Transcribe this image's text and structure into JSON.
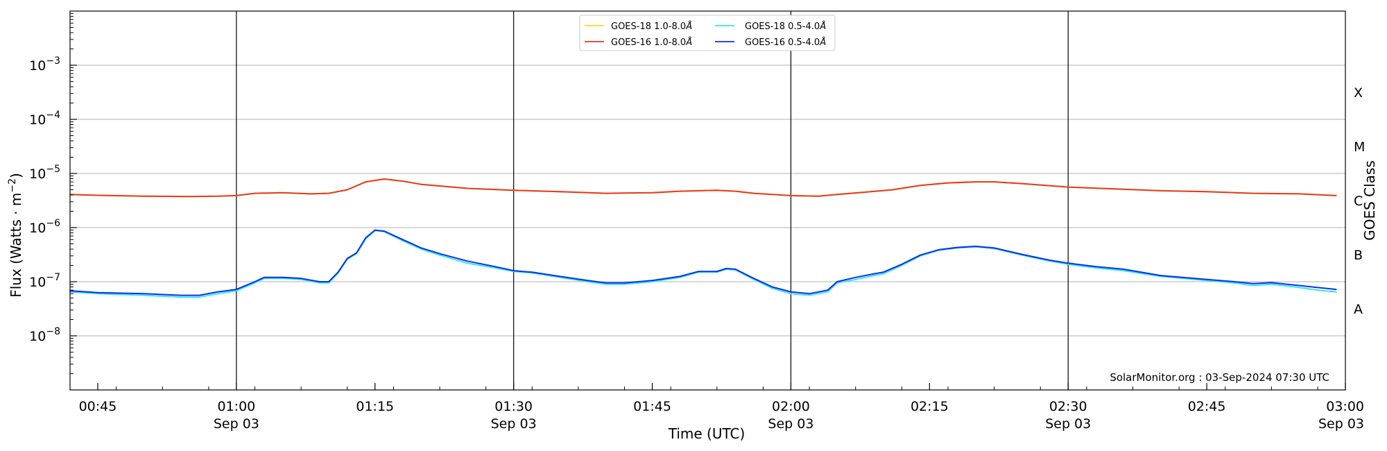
{
  "chart_data": {
    "type": "line",
    "xlabel": "Time (UTC)",
    "ylabel": "Flux (Watts · m",
    "ylabel_sup": "−2",
    "ylabel_close": ")",
    "right_label": "GOES Class",
    "credit": "SolarMonitor.org : 03-Sep-2024 07:30 UTC",
    "x_range": [
      "00:42",
      "03:00"
    ],
    "y_scale": "log",
    "ylim": [
      1e-09,
      0.01
    ],
    "y_ticks": [
      {
        "value": 1e-08,
        "base": "10",
        "exp": "−8"
      },
      {
        "value": 1e-07,
        "base": "10",
        "exp": "−7"
      },
      {
        "value": 1e-06,
        "base": "10",
        "exp": "−6"
      },
      {
        "value": 1e-05,
        "base": "10",
        "exp": "−5"
      },
      {
        "value": 0.0001,
        "base": "10",
        "exp": "−4"
      },
      {
        "value": 0.001,
        "base": "10",
        "exp": "−3"
      }
    ],
    "x_ticks": [
      {
        "time": "00:45",
        "label": "00:45",
        "sub": ""
      },
      {
        "time": "01:00",
        "label": "01:00",
        "sub": "Sep 03"
      },
      {
        "time": "01:15",
        "label": "01:15",
        "sub": ""
      },
      {
        "time": "01:30",
        "label": "01:30",
        "sub": "Sep 03"
      },
      {
        "time": "01:45",
        "label": "01:45",
        "sub": ""
      },
      {
        "time": "02:00",
        "label": "02:00",
        "sub": "Sep 03"
      },
      {
        "time": "02:15",
        "label": "02:15",
        "sub": ""
      },
      {
        "time": "02:30",
        "label": "02:30",
        "sub": "Sep 03"
      },
      {
        "time": "02:45",
        "label": "02:45",
        "sub": ""
      },
      {
        "time": "03:00",
        "label": "03:00",
        "sub": "Sep 03"
      }
    ],
    "vertical_lines": [
      "01:00",
      "01:30",
      "02:00",
      "02:30"
    ],
    "grid_y": true,
    "goes_classes": [
      {
        "label": "A",
        "value": 3.16e-08
      },
      {
        "label": "B",
        "value": 3.16e-07
      },
      {
        "label": "C",
        "value": 3.16e-06
      },
      {
        "label": "M",
        "value": 3.16e-05
      },
      {
        "label": "X",
        "value": 0.000316
      }
    ],
    "legend_position": "top-center",
    "legend": [
      {
        "name": "GOES-18 1.0-8.0",
        "unit": "Å",
        "color": "#ffd21f"
      },
      {
        "name": "GOES-18 0.5-4.0",
        "unit": "Å",
        "color": "#2ee6f0"
      },
      {
        "name": "GOES-16 1.0-8.0",
        "unit": "Å",
        "color": "#e8381c"
      },
      {
        "name": "GOES-16 0.5-4.0",
        "unit": "Å",
        "color": "#0a30e8"
      }
    ],
    "series": [
      {
        "name": "GOES-18 1.0-8.0Å",
        "color": "#ffd21f",
        "points": [
          [
            "00:42",
            4.1e-06
          ],
          [
            "00:45",
            3.95e-06
          ],
          [
            "00:50",
            3.8e-06
          ],
          [
            "00:55",
            3.75e-06
          ],
          [
            "00:58",
            3.8e-06
          ],
          [
            "01:00",
            3.9e-06
          ],
          [
            "01:02",
            4.3e-06
          ],
          [
            "01:05",
            4.4e-06
          ],
          [
            "01:08",
            4.2e-06
          ],
          [
            "01:10",
            4.3e-06
          ],
          [
            "01:12",
            5e-06
          ],
          [
            "01:14",
            7e-06
          ],
          [
            "01:16",
            7.9e-06
          ],
          [
            "01:18",
            7.2e-06
          ],
          [
            "01:20",
            6.3e-06
          ],
          [
            "01:25",
            5.3e-06
          ],
          [
            "01:30",
            4.9e-06
          ],
          [
            "01:35",
            4.6e-06
          ],
          [
            "01:40",
            4.3e-06
          ],
          [
            "01:45",
            4.4e-06
          ],
          [
            "01:48",
            4.7e-06
          ],
          [
            "01:50",
            4.8e-06
          ],
          [
            "01:52",
            4.9e-06
          ],
          [
            "01:54",
            4.7e-06
          ],
          [
            "01:56",
            4.3e-06
          ],
          [
            "02:00",
            3.9e-06
          ],
          [
            "02:03",
            3.8e-06
          ],
          [
            "02:05",
            4.1e-06
          ],
          [
            "02:08",
            4.5e-06
          ],
          [
            "02:11",
            5e-06
          ],
          [
            "02:14",
            6e-06
          ],
          [
            "02:17",
            6.7e-06
          ],
          [
            "02:20",
            7e-06
          ],
          [
            "02:22",
            7e-06
          ],
          [
            "02:25",
            6.5e-06
          ],
          [
            "02:30",
            5.6e-06
          ],
          [
            "02:35",
            5.2e-06
          ],
          [
            "02:40",
            4.8e-06
          ],
          [
            "02:45",
            4.6e-06
          ],
          [
            "02:50",
            4.3e-06
          ],
          [
            "02:55",
            4.2e-06
          ],
          [
            "02:59",
            3.9e-06
          ]
        ]
      },
      {
        "name": "GOES-16 1.0-8.0Å",
        "color": "#e8381c",
        "points": [
          [
            "00:42",
            4.1e-06
          ],
          [
            "00:45",
            3.95e-06
          ],
          [
            "00:50",
            3.8e-06
          ],
          [
            "00:55",
            3.75e-06
          ],
          [
            "00:58",
            3.8e-06
          ],
          [
            "01:00",
            3.9e-06
          ],
          [
            "01:02",
            4.3e-06
          ],
          [
            "01:05",
            4.4e-06
          ],
          [
            "01:08",
            4.2e-06
          ],
          [
            "01:10",
            4.3e-06
          ],
          [
            "01:12",
            5e-06
          ],
          [
            "01:14",
            7e-06
          ],
          [
            "01:16",
            7.9e-06
          ],
          [
            "01:18",
            7.2e-06
          ],
          [
            "01:20",
            6.3e-06
          ],
          [
            "01:25",
            5.3e-06
          ],
          [
            "01:30",
            4.9e-06
          ],
          [
            "01:35",
            4.6e-06
          ],
          [
            "01:40",
            4.3e-06
          ],
          [
            "01:45",
            4.4e-06
          ],
          [
            "01:48",
            4.7e-06
          ],
          [
            "01:50",
            4.8e-06
          ],
          [
            "01:52",
            4.9e-06
          ],
          [
            "01:54",
            4.7e-06
          ],
          [
            "01:56",
            4.3e-06
          ],
          [
            "02:00",
            3.9e-06
          ],
          [
            "02:03",
            3.8e-06
          ],
          [
            "02:05",
            4.1e-06
          ],
          [
            "02:08",
            4.5e-06
          ],
          [
            "02:11",
            5e-06
          ],
          [
            "02:14",
            6e-06
          ],
          [
            "02:17",
            6.7e-06
          ],
          [
            "02:20",
            7e-06
          ],
          [
            "02:22",
            7e-06
          ],
          [
            "02:25",
            6.5e-06
          ],
          [
            "02:30",
            5.6e-06
          ],
          [
            "02:35",
            5.2e-06
          ],
          [
            "02:40",
            4.8e-06
          ],
          [
            "02:45",
            4.6e-06
          ],
          [
            "02:50",
            4.3e-06
          ],
          [
            "02:55",
            4.2e-06
          ],
          [
            "02:59",
            3.9e-06
          ]
        ]
      },
      {
        "name": "GOES-18 0.5-4.0Å",
        "color": "#2ee6f0",
        "points": [
          [
            "00:42",
            6.5e-08
          ],
          [
            "00:45",
            6e-08
          ],
          [
            "00:50",
            5.6e-08
          ],
          [
            "00:54",
            5.2e-08
          ],
          [
            "00:56",
            5.2e-08
          ],
          [
            "00:58",
            6e-08
          ],
          [
            "01:00",
            6.8e-08
          ],
          [
            "01:02",
            9.5e-08
          ],
          [
            "01:03",
            1.15e-07
          ],
          [
            "01:05",
            1.15e-07
          ],
          [
            "01:07",
            1.1e-07
          ],
          [
            "01:09",
            9.5e-08
          ],
          [
            "01:10",
            9.5e-08
          ],
          [
            "01:11",
            1.45e-07
          ],
          [
            "01:12",
            2.6e-07
          ],
          [
            "01:13",
            3.3e-07
          ],
          [
            "01:14",
            6.2e-07
          ],
          [
            "01:15",
            8.8e-07
          ],
          [
            "01:16",
            8.4e-07
          ],
          [
            "01:18",
            5.7e-07
          ],
          [
            "01:20",
            4e-07
          ],
          [
            "01:22",
            3.1e-07
          ],
          [
            "01:25",
            2.2e-07
          ],
          [
            "01:28",
            1.8e-07
          ],
          [
            "01:30",
            1.55e-07
          ],
          [
            "01:32",
            1.45e-07
          ],
          [
            "01:35",
            1.2e-07
          ],
          [
            "01:38",
            1e-07
          ],
          [
            "01:40",
            9e-08
          ],
          [
            "01:42",
            9e-08
          ],
          [
            "01:45",
            1e-07
          ],
          [
            "01:48",
            1.2e-07
          ],
          [
            "01:50",
            1.5e-07
          ],
          [
            "01:52",
            1.5e-07
          ],
          [
            "01:53",
            1.7e-07
          ],
          [
            "01:54",
            1.65e-07
          ],
          [
            "01:56",
            1.1e-07
          ],
          [
            "01:58",
            7.5e-08
          ],
          [
            "02:00",
            6e-08
          ],
          [
            "02:02",
            5.6e-08
          ],
          [
            "02:04",
            6.5e-08
          ],
          [
            "02:05",
            9.5e-08
          ],
          [
            "02:07",
            1.1e-07
          ],
          [
            "02:09",
            1.3e-07
          ],
          [
            "02:10",
            1.4e-07
          ],
          [
            "02:12",
            2e-07
          ],
          [
            "02:14",
            3e-07
          ],
          [
            "02:16",
            3.8e-07
          ],
          [
            "02:18",
            4.2e-07
          ],
          [
            "02:20",
            4.4e-07
          ],
          [
            "02:22",
            4.1e-07
          ],
          [
            "02:25",
            3.1e-07
          ],
          [
            "02:28",
            2.4e-07
          ],
          [
            "02:30",
            2.1e-07
          ],
          [
            "02:33",
            1.8e-07
          ],
          [
            "02:36",
            1.6e-07
          ],
          [
            "02:40",
            1.25e-07
          ],
          [
            "02:45",
            1.05e-07
          ],
          [
            "02:48",
            9.5e-08
          ],
          [
            "02:50",
            8.5e-08
          ],
          [
            "02:52",
            9e-08
          ],
          [
            "02:55",
            7.8e-08
          ],
          [
            "02:57",
            7e-08
          ],
          [
            "02:59",
            6.5e-08
          ]
        ]
      },
      {
        "name": "GOES-16 0.5-4.0Å",
        "color": "#0a30e8",
        "points": [
          [
            "00:42",
            6.8e-08
          ],
          [
            "00:45",
            6.3e-08
          ],
          [
            "00:50",
            6e-08
          ],
          [
            "00:54",
            5.6e-08
          ],
          [
            "00:56",
            5.6e-08
          ],
          [
            "00:58",
            6.5e-08
          ],
          [
            "01:00",
            7.2e-08
          ],
          [
            "01:02",
            1e-07
          ],
          [
            "01:03",
            1.2e-07
          ],
          [
            "01:05",
            1.2e-07
          ],
          [
            "01:07",
            1.15e-07
          ],
          [
            "01:09",
            1e-07
          ],
          [
            "01:10",
            1e-07
          ],
          [
            "01:11",
            1.5e-07
          ],
          [
            "01:12",
            2.7e-07
          ],
          [
            "01:13",
            3.4e-07
          ],
          [
            "01:14",
            6.5e-07
          ],
          [
            "01:15",
            9e-07
          ],
          [
            "01:16",
            8.6e-07
          ],
          [
            "01:18",
            6e-07
          ],
          [
            "01:20",
            4.2e-07
          ],
          [
            "01:22",
            3.3e-07
          ],
          [
            "01:25",
            2.4e-07
          ],
          [
            "01:28",
            1.9e-07
          ],
          [
            "01:30",
            1.6e-07
          ],
          [
            "01:32",
            1.5e-07
          ],
          [
            "01:35",
            1.25e-07
          ],
          [
            "01:38",
            1.05e-07
          ],
          [
            "01:40",
            9.5e-08
          ],
          [
            "01:42",
            9.5e-08
          ],
          [
            "01:45",
            1.05e-07
          ],
          [
            "01:48",
            1.25e-07
          ],
          [
            "01:50",
            1.55e-07
          ],
          [
            "01:52",
            1.55e-07
          ],
          [
            "01:53",
            1.75e-07
          ],
          [
            "01:54",
            1.7e-07
          ],
          [
            "01:56",
            1.15e-07
          ],
          [
            "01:58",
            8e-08
          ],
          [
            "02:00",
            6.5e-08
          ],
          [
            "02:02",
            6e-08
          ],
          [
            "02:04",
            7e-08
          ],
          [
            "02:05",
            1e-07
          ],
          [
            "02:07",
            1.2e-07
          ],
          [
            "02:09",
            1.4e-07
          ],
          [
            "02:10",
            1.5e-07
          ],
          [
            "02:12",
            2.1e-07
          ],
          [
            "02:14",
            3.1e-07
          ],
          [
            "02:16",
            3.9e-07
          ],
          [
            "02:18",
            4.3e-07
          ],
          [
            "02:20",
            4.5e-07
          ],
          [
            "02:22",
            4.2e-07
          ],
          [
            "02:25",
            3.2e-07
          ],
          [
            "02:28",
            2.5e-07
          ],
          [
            "02:30",
            2.2e-07
          ],
          [
            "02:33",
            1.9e-07
          ],
          [
            "02:36",
            1.7e-07
          ],
          [
            "02:40",
            1.3e-07
          ],
          [
            "02:45",
            1.1e-07
          ],
          [
            "02:48",
            1e-07
          ],
          [
            "02:50",
            9.2e-08
          ],
          [
            "02:52",
            9.6e-08
          ],
          [
            "02:55",
            8.5e-08
          ],
          [
            "02:57",
            7.8e-08
          ],
          [
            "02:59",
            7.2e-08
          ]
        ]
      }
    ]
  }
}
